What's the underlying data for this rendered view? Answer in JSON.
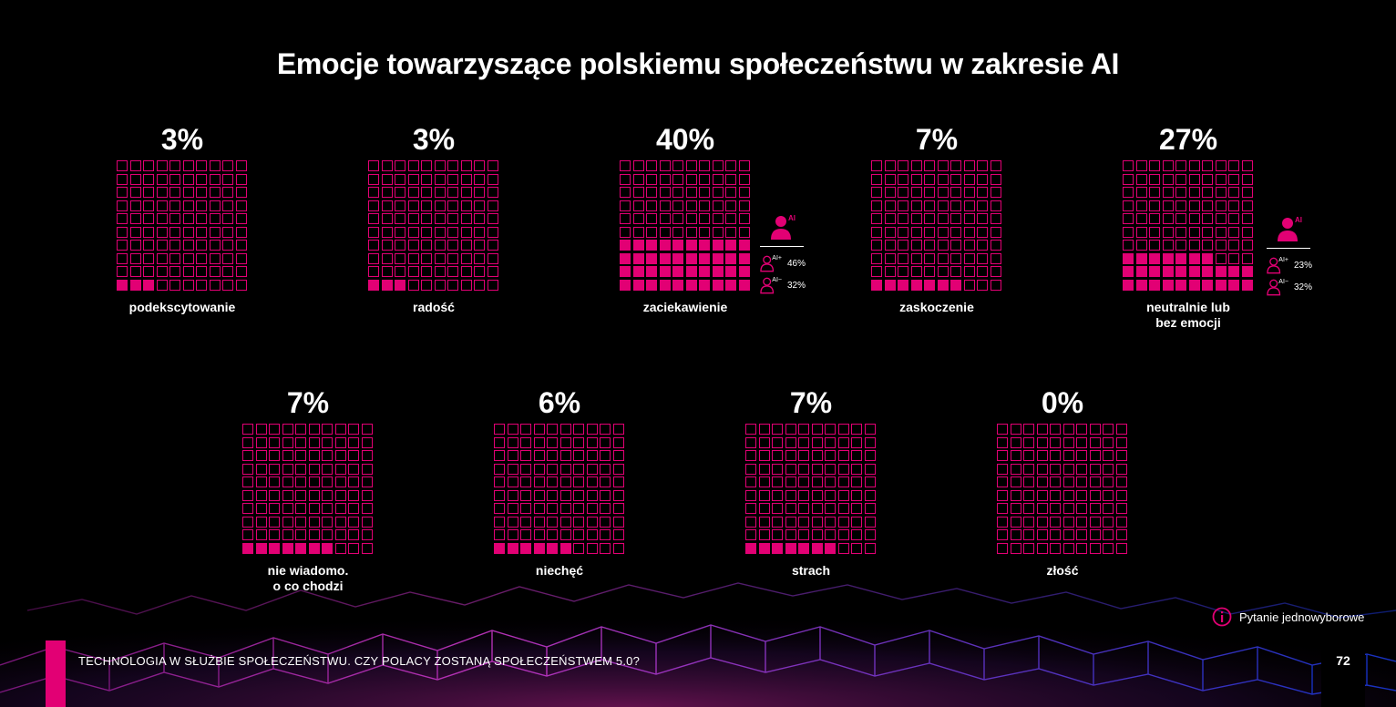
{
  "title": "Emocje towarzyszące polskiemu społeczeństwu w zakresie AI",
  "colors": {
    "accent": "#e20074",
    "background": "#000000"
  },
  "chart_data": {
    "type": "waffle",
    "units": "percent",
    "grid": "10x10",
    "items": [
      {
        "label": "podekscytowanie",
        "value": 3,
        "value_label": "3%"
      },
      {
        "label": "radość",
        "value": 3,
        "value_label": "3%"
      },
      {
        "label": "zaciekawienie",
        "value": 40,
        "value_label": "40%",
        "breakdown": [
          {
            "group": "AI+",
            "value_label": "46%"
          },
          {
            "group": "AI−",
            "value_label": "32%"
          }
        ]
      },
      {
        "label": "zaskoczenie",
        "value": 7,
        "value_label": "7%"
      },
      {
        "label": "neutralnie lub\nbez emocji",
        "value": 27,
        "value_label": "27%",
        "breakdown": [
          {
            "group": "AI+",
            "value_label": "23%"
          },
          {
            "group": "AI−",
            "value_label": "32%"
          }
        ]
      },
      {
        "label": "nie wiadomo.\no co chodzi",
        "value": 7,
        "value_label": "7%"
      },
      {
        "label": "niechęć",
        "value": 6,
        "value_label": "6%"
      },
      {
        "label": "strach",
        "value": 7,
        "value_label": "7%"
      },
      {
        "label": "złość",
        "value": 0,
        "value_label": "0%"
      }
    ]
  },
  "side_icon_text": "AI",
  "note": {
    "text": "Pytanie jednowyborowe",
    "icon": "info-icon"
  },
  "footer": {
    "text": "TECHNOLOGIA W SŁUŻBIE SPOŁECZEŃSTWU. CZY POLACY ZOSTANĄ SPOŁECZEŃSTWEM 5.0?",
    "page": "72"
  }
}
